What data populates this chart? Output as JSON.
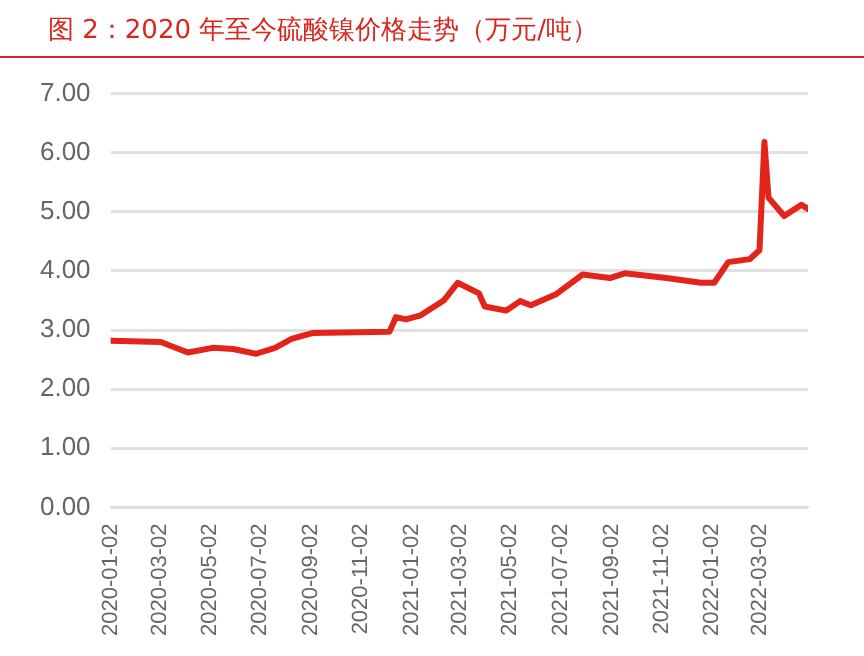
{
  "chart_data": {
    "type": "line",
    "title": "图 2：2020 年至今硫酸镍价格走势（万元/吨）",
    "x": [
      "2020-01-02",
      "2020-03-03",
      "2020-04-05",
      "2020-05-05",
      "2020-05-30",
      "2020-06-27",
      "2020-07-20",
      "2020-08-09",
      "2020-09-03",
      "2020-12-06",
      "2020-12-14",
      "2020-12-26",
      "2021-01-13",
      "2021-02-10",
      "2021-02-27",
      "2021-03-25",
      "2021-04-01",
      "2021-04-27",
      "2021-05-14",
      "2021-05-27",
      "2021-06-26",
      "2021-07-29",
      "2021-08-31",
      "2021-09-18",
      "2021-11-08",
      "2021-12-20",
      "2022-01-05",
      "2022-01-22",
      "2022-02-17",
      "2022-03-01",
      "2022-03-07",
      "2022-03-12",
      "2022-03-31",
      "2022-04-21",
      "2022-04-29"
    ],
    "series": [
      {
        "color": "#e3241b",
        "values": [
          2.82,
          2.8,
          2.62,
          2.7,
          2.68,
          2.6,
          2.7,
          2.85,
          2.95,
          2.97,
          3.22,
          3.18,
          3.25,
          3.5,
          3.8,
          3.62,
          3.4,
          3.33,
          3.49,
          3.42,
          3.6,
          3.94,
          3.88,
          3.96,
          3.88,
          3.8,
          3.8,
          4.15,
          4.2,
          4.35,
          6.18,
          5.24,
          4.93,
          5.12,
          5.05
        ]
      }
    ],
    "xlim": [
      "2020-01-02",
      "2022-04-29"
    ],
    "xticks": [
      "2020-01-02",
      "2020-03-02",
      "2020-05-02",
      "2020-07-02",
      "2020-09-02",
      "2020-11-02",
      "2021-01-02",
      "2021-03-02",
      "2021-05-02",
      "2021-07-02",
      "2021-09-02",
      "2021-11-02",
      "2022-01-02",
      "2022-03-02"
    ],
    "ylim": [
      0,
      7
    ],
    "yticks": [
      {
        "value": 0,
        "label": "0.00"
      },
      {
        "value": 1,
        "label": "1.00"
      },
      {
        "value": 2,
        "label": "2.00"
      },
      {
        "value": 3,
        "label": "3.00"
      },
      {
        "value": 4,
        "label": "4.00"
      },
      {
        "value": 5,
        "label": "5.00"
      },
      {
        "value": 6,
        "label": "6.00"
      },
      {
        "value": 7,
        "label": "7.00"
      }
    ],
    "grid": "y",
    "legend": false,
    "marker": "none",
    "line_style": "solid"
  }
}
